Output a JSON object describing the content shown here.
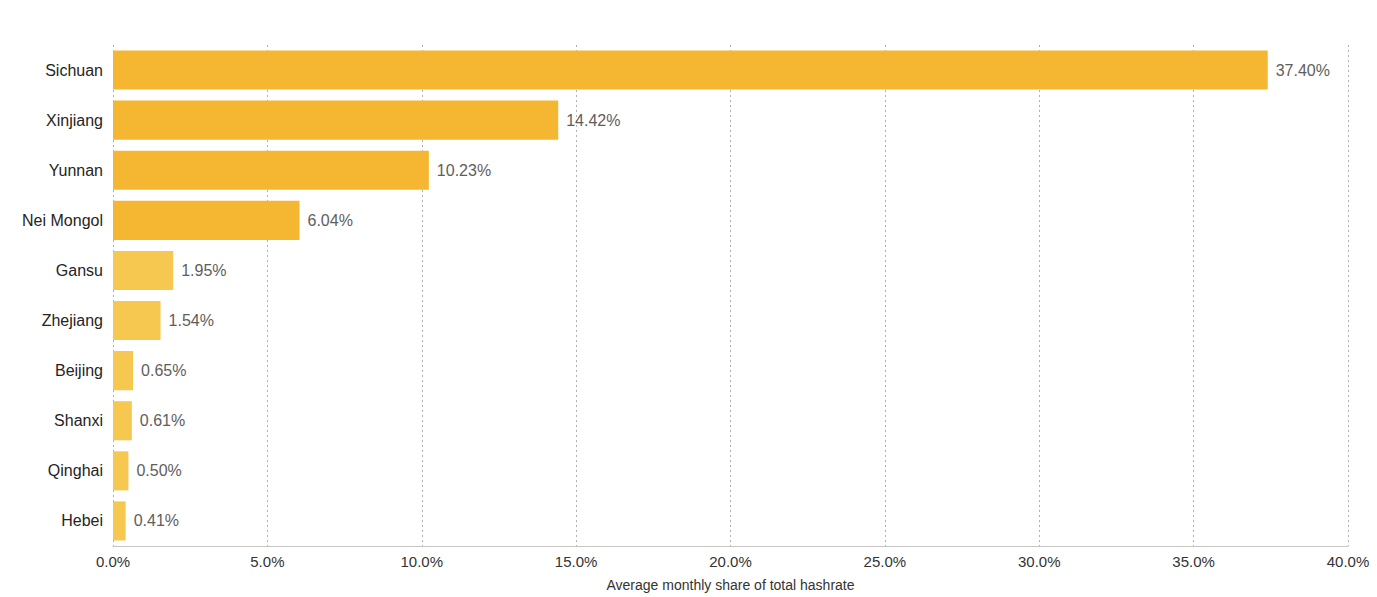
{
  "chart_data": {
    "type": "bar",
    "orientation": "horizontal",
    "x_label": "Average monthly share of total hashrate",
    "categories": [
      "Sichuan",
      "Xinjiang",
      "Yunnan",
      "Nei Mongol",
      "Gansu",
      "Zhejiang",
      "Beijing",
      "Shanxi",
      "Qinghai",
      "Hebei"
    ],
    "values": [
      37.4,
      14.42,
      10.23,
      6.04,
      1.95,
      1.54,
      0.65,
      0.61,
      0.5,
      0.41
    ],
    "value_labels": [
      "37.40%",
      "14.42%",
      "10.23%",
      "6.04%",
      "1.95%",
      "1.54%",
      "0.65%",
      "0.61%",
      "0.50%",
      "0.41%"
    ],
    "colors": [
      "#F5B731",
      "#F5B731",
      "#F5B731",
      "#F5B731",
      "#F7C84F",
      "#F7C84F",
      "#F7C84F",
      "#F7C84F",
      "#F7C84F",
      "#F7C84F"
    ],
    "xlim": [
      0,
      40
    ],
    "xticks": [
      {
        "value": 0,
        "label": "0.0%"
      },
      {
        "value": 5,
        "label": "5.0%"
      },
      {
        "value": 10,
        "label": "10.0%"
      },
      {
        "value": 15,
        "label": "15.0%"
      },
      {
        "value": 20,
        "label": "20.0%"
      },
      {
        "value": 25,
        "label": "25.0%"
      },
      {
        "value": 30,
        "label": "30.0%"
      },
      {
        "value": 35,
        "label": "35.0%"
      },
      {
        "value": 40,
        "label": "40.0%"
      }
    ],
    "grid": true,
    "data_labels": true
  }
}
